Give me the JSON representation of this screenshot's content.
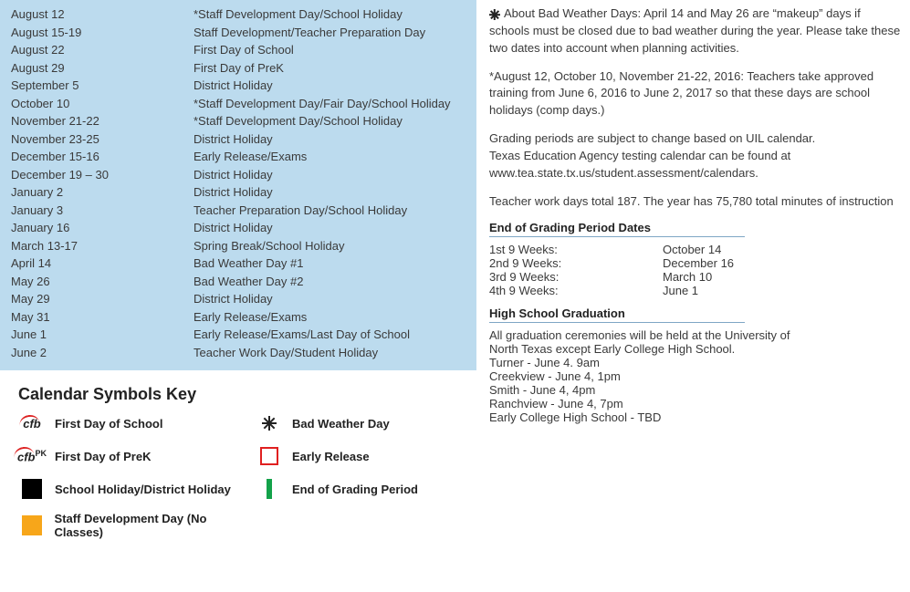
{
  "colors": {
    "datelist_bg": "#bcdbee",
    "text": "#3a3a3a",
    "heading": "#222222",
    "underline": "#7fa6c5",
    "black": "#000000",
    "orange": "#f7a61a",
    "red": "#e02020",
    "green": "#13a24a"
  },
  "typography": {
    "body_fontsize": 13,
    "title_fontsize": 18,
    "font_family": "Segoe UI, Tahoma, sans-serif"
  },
  "dates": [
    {
      "date": "August 12",
      "desc": "*Staff Development Day/School Holiday"
    },
    {
      "date": "August 15-19",
      "desc": "Staff Development/Teacher Preparation Day"
    },
    {
      "date": "August 22",
      "desc": "First Day of School"
    },
    {
      "date": "August 29",
      "desc": "First Day of PreK"
    },
    {
      "date": "September 5",
      "desc": "District Holiday"
    },
    {
      "date": "October 10",
      "desc": "*Staff Development Day/Fair Day/School Holiday"
    },
    {
      "date": "November 21-22",
      "desc": "*Staff Development Day/School Holiday"
    },
    {
      "date": "November 23-25",
      "desc": "District Holiday"
    },
    {
      "date": "December 15-16",
      "desc": "Early Release/Exams"
    },
    {
      "date": "December 19 – 30",
      "desc": "District Holiday"
    },
    {
      "date": "January 2",
      "desc": "District Holiday"
    },
    {
      "date": "January 3",
      "desc": "Teacher Preparation Day/School Holiday"
    },
    {
      "date": "January 16",
      "desc": "District Holiday"
    },
    {
      "date": "March 13-17",
      "desc": "Spring Break/School Holiday"
    },
    {
      "date": "April 14",
      "desc": "Bad Weather Day #1"
    },
    {
      "date": "May 26",
      "desc": " Bad Weather Day #2"
    },
    {
      "date": "May 29",
      "desc": "District Holiday"
    },
    {
      "date": "May 31",
      "desc": "Early Release/Exams"
    },
    {
      "date": "June 1",
      "desc": "Early Release/Exams/Last Day of School"
    },
    {
      "date": "June 2",
      "desc": "Teacher Work Day/Student Holiday"
    }
  ],
  "key": {
    "title": "Calendar Symbols Key",
    "items": {
      "first_day_school": "First Day of School",
      "bad_weather": "Bad Weather Day",
      "first_day_prek": "First Day of PreK",
      "early_release": "Early Release",
      "holiday": "School Holiday/District Holiday",
      "end_grading": "End of Grading Period",
      "staff_dev": "Staff Development Day (No Classes)"
    }
  },
  "right": {
    "p1": "About Bad Weather Days: April 14 and May 26 are “makeup” days if schools must be closed due to bad weather during the year. Please take these two dates into account when planning activities.",
    "p2": "*August 12, October 10, November 21-22, 2016:  Teachers take approved training from June 6, 2016 to June 2, 2017 so that these days are school holidays (comp days.)",
    "p3a": "Grading periods are subject to change based on UIL calendar.",
    "p3b": "Texas Education Agency testing calendar can be found at",
    "p3c": "www.tea.state.tx.us/student.assessment/calendars.",
    "p4": "Teacher work days total 187. The year has 75,780 total minutes of instruction",
    "grading": {
      "title": "End of Grading Period Dates",
      "rows": [
        {
          "label": "1st 9 Weeks:",
          "date": "October 14"
        },
        {
          "label": "2nd 9 Weeks:",
          "date": "December 16"
        },
        {
          "label": "3rd 9 Weeks:",
          "date": "March 10"
        },
        {
          "label": "4th 9 Weeks:",
          "date": "June 1"
        }
      ]
    },
    "grad": {
      "title": "High School Graduation",
      "intro1": "All graduation ceremonies will be held at the University of",
      "intro2": "North Texas except Early College High School.",
      "rows": [
        "Turner - June 4. 9am",
        "Creekview - June 4, 1pm",
        "Smith - June 4, 4pm",
        "Ranchview - June 4, 7pm",
        "Early College High School - TBD"
      ]
    }
  }
}
